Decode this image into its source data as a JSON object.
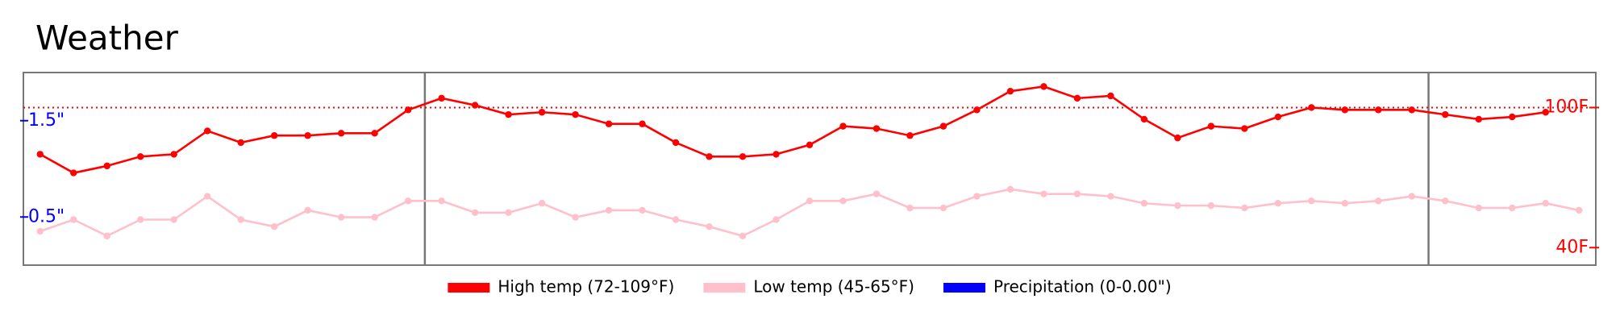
{
  "chart_data": {
    "type": "line",
    "title": "Weather",
    "x": [
      1,
      2,
      3,
      4,
      5,
      6,
      7,
      8,
      9,
      10,
      11,
      12,
      13,
      14,
      15,
      16,
      17,
      18,
      19,
      20,
      21,
      22,
      23,
      24,
      25,
      26,
      27,
      28,
      29,
      30,
      31,
      32,
      33,
      34,
      35,
      36,
      37,
      38,
      39,
      40,
      41,
      42,
      43,
      44,
      45,
      46,
      47
    ],
    "xlim": [
      0.5,
      47.5
    ],
    "vlines": [
      12.5,
      42.5
    ],
    "ylim": [
      0,
      2
    ],
    "yticks": [
      {
        "value": 0.5,
        "label": "0.5\""
      },
      {
        "value": 1.5,
        "label": "1.5\""
      }
    ],
    "ycolor": "#0000ff",
    "y2lim": [
      32.5,
      115
    ],
    "y2ticks": [
      {
        "value": 40,
        "label": "40F"
      },
      {
        "value": 100,
        "label": "100F"
      }
    ],
    "y2color": "#ff0000",
    "reference_line": {
      "axis": "y2",
      "value": 100,
      "color": "#ff0000"
    },
    "legend": "bottom",
    "series": [
      {
        "name": "High temp (72-109°F)",
        "color": "#ff0000",
        "axis": "y2",
        "values": [
          80,
          72,
          75,
          79,
          80,
          90,
          85,
          88,
          88,
          89,
          89,
          99,
          104,
          101,
          97,
          98,
          97,
          93,
          93,
          85,
          79,
          79,
          80,
          84,
          92,
          91,
          88,
          92,
          99,
          107,
          109,
          104,
          105,
          95,
          87,
          92,
          91,
          96,
          100,
          99,
          99,
          99,
          97,
          95,
          96,
          98,
          null
        ]
      },
      {
        "name": "Low temp (45-65°F)",
        "color": "#ffc0cb",
        "axis": "y2",
        "values": [
          47,
          52,
          45,
          52,
          52,
          62,
          52,
          49,
          56,
          53,
          53,
          60,
          60,
          55,
          55,
          59,
          53,
          56,
          56,
          52,
          49,
          45,
          52,
          60,
          60,
          63,
          57,
          57,
          62,
          65,
          63,
          63,
          62,
          59,
          58,
          58,
          57,
          59,
          60,
          59,
          60,
          62,
          60,
          57,
          57,
          59,
          56
        ]
      },
      {
        "name": "Precipitation (0-0.00\")",
        "color": "#0000ff",
        "axis": "y",
        "values": [
          0,
          0,
          0,
          0,
          0,
          0,
          0,
          0,
          0,
          0,
          0,
          0,
          0,
          0,
          0,
          0,
          0,
          0,
          0,
          0,
          0,
          0,
          0,
          0,
          0,
          0,
          0,
          0,
          0,
          0,
          0,
          0,
          0,
          0,
          0,
          0,
          0,
          0,
          0,
          0,
          0,
          0,
          0,
          0,
          0,
          0,
          0
        ]
      }
    ]
  }
}
